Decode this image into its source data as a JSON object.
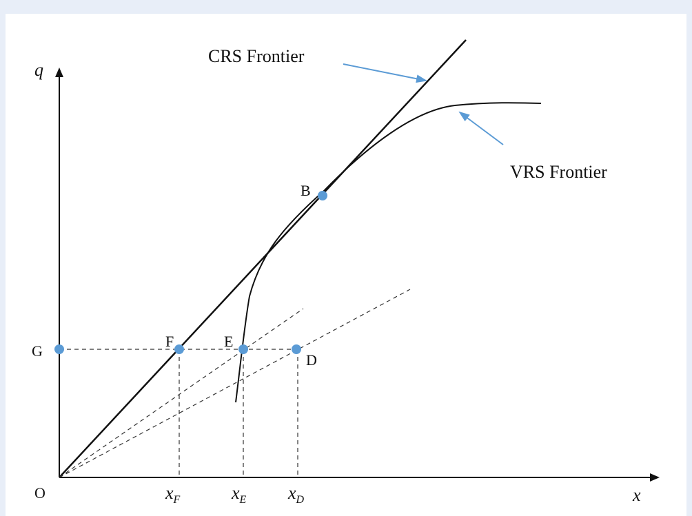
{
  "diagram": {
    "colors": {
      "background": "#e8eef8",
      "panel": "#ffffff",
      "line": "#111111",
      "point": "#5b9bd5",
      "pointer_arrow": "#5b9bd5"
    },
    "axes": {
      "y_label": "q",
      "x_label": "x",
      "origin_label": "O"
    },
    "frontiers": {
      "crs_label": "CRS Frontier",
      "vrs_label": "VRS Frontier"
    },
    "points": {
      "B": "B",
      "E": "E",
      "F": "F",
      "D": "D",
      "G": "G"
    },
    "x_ticks": [
      {
        "base": "x",
        "sub": "F"
      },
      {
        "base": "x",
        "sub": "E"
      },
      {
        "base": "x",
        "sub": "D"
      }
    ]
  }
}
